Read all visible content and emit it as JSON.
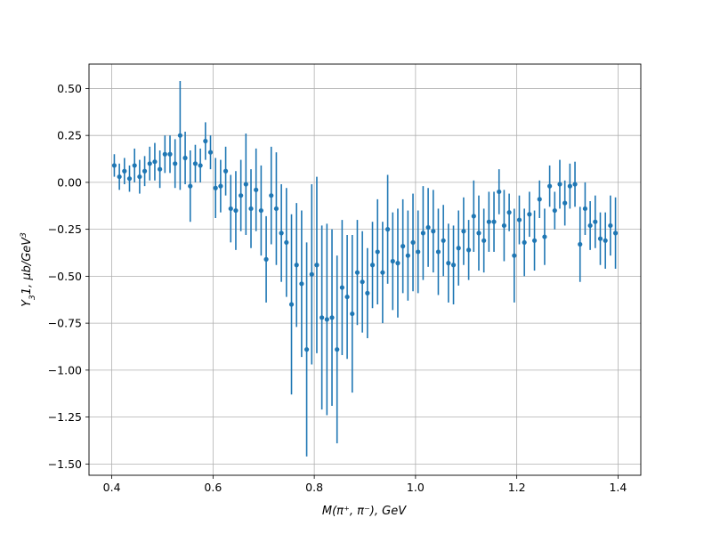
{
  "chart_data": {
    "type": "scatter",
    "title": "",
    "xlabel": "M(π⁺, π⁻), GeV",
    "ylabel_parts": {
      "y": "Y",
      "sub": "3",
      "rest": "1, μb/GeV",
      "sup": "3"
    },
    "xlim": [
      0.355,
      1.445
    ],
    "ylim": [
      -1.56,
      0.63
    ],
    "xticks": [
      0.4,
      0.6,
      0.8,
      1.0,
      1.2,
      1.4
    ],
    "xtick_labels": [
      "0.4",
      "0.6",
      "0.8",
      "1.0",
      "1.2",
      "1.4"
    ],
    "yticks": [
      0.5,
      0.25,
      0.0,
      -0.25,
      -0.5,
      -0.75,
      -1.0,
      -1.25,
      -1.5
    ],
    "ytick_labels": [
      "0.50",
      "0.25",
      "0.00",
      "−0.25",
      "−0.50",
      "−0.75",
      "−1.00",
      "−1.25",
      "−1.50"
    ],
    "grid": true,
    "color": "#1f77b4",
    "series": [
      {
        "x": [
          0.405,
          0.415,
          0.425,
          0.435,
          0.445,
          0.455,
          0.465,
          0.475,
          0.485,
          0.495,
          0.505,
          0.515,
          0.525,
          0.535,
          0.545,
          0.555,
          0.565,
          0.575,
          0.585,
          0.595,
          0.605,
          0.615,
          0.625,
          0.635,
          0.645,
          0.655,
          0.665,
          0.675,
          0.685,
          0.695,
          0.705,
          0.715,
          0.725,
          0.735,
          0.745,
          0.755,
          0.765,
          0.775,
          0.785,
          0.795,
          0.805,
          0.815,
          0.825,
          0.835,
          0.845,
          0.855,
          0.865,
          0.875,
          0.885,
          0.895,
          0.905,
          0.915,
          0.925,
          0.935,
          0.945,
          0.955,
          0.965,
          0.975,
          0.985,
          0.995,
          1.005,
          1.015,
          1.025,
          1.035,
          1.045,
          1.055,
          1.065,
          1.075,
          1.085,
          1.095,
          1.105,
          1.115,
          1.125,
          1.135,
          1.145,
          1.155,
          1.165,
          1.175,
          1.185,
          1.195,
          1.205,
          1.215,
          1.225,
          1.235,
          1.245,
          1.255,
          1.265,
          1.275,
          1.285,
          1.295,
          1.305,
          1.315,
          1.325,
          1.335,
          1.345,
          1.355,
          1.365,
          1.375,
          1.385,
          1.395
        ],
        "y": [
          0.09,
          0.03,
          0.06,
          0.02,
          0.09,
          0.03,
          0.06,
          0.1,
          0.11,
          0.07,
          0.15,
          0.15,
          0.1,
          0.25,
          0.13,
          -0.02,
          0.1,
          0.09,
          0.22,
          0.16,
          -0.03,
          -0.02,
          0.06,
          -0.14,
          -0.15,
          -0.07,
          -0.01,
          -0.14,
          -0.04,
          -0.15,
          -0.41,
          -0.07,
          -0.14,
          -0.27,
          -0.32,
          -0.65,
          -0.44,
          -0.54,
          -0.89,
          -0.49,
          -0.44,
          -0.72,
          -0.73,
          -0.72,
          -0.89,
          -0.56,
          -0.61,
          -0.7,
          -0.48,
          -0.53,
          -0.59,
          -0.44,
          -0.37,
          -0.48,
          -0.25,
          -0.42,
          -0.43,
          -0.34,
          -0.39,
          -0.32,
          -0.37,
          -0.27,
          -0.24,
          -0.26,
          -0.37,
          -0.31,
          -0.43,
          -0.44,
          -0.35,
          -0.26,
          -0.36,
          -0.18,
          -0.27,
          -0.31,
          -0.21,
          -0.21,
          -0.05,
          -0.23,
          -0.16,
          -0.39,
          -0.2,
          -0.32,
          -0.17,
          -0.31,
          -0.09,
          -0.29,
          -0.02,
          -0.15,
          -0.01,
          -0.11,
          -0.02,
          -0.01,
          -0.33,
          -0.14,
          -0.23,
          -0.21,
          -0.3,
          -0.31,
          -0.23,
          -0.27
        ],
        "yerr": [
          0.06,
          0.07,
          0.07,
          0.07,
          0.09,
          0.09,
          0.08,
          0.09,
          0.1,
          0.1,
          0.1,
          0.1,
          0.13,
          0.29,
          0.14,
          0.19,
          0.1,
          0.09,
          0.1,
          0.09,
          0.16,
          0.14,
          0.13,
          0.18,
          0.21,
          0.19,
          0.27,
          0.21,
          0.22,
          0.24,
          0.23,
          0.26,
          0.3,
          0.26,
          0.29,
          0.48,
          0.33,
          0.39,
          0.57,
          0.48,
          0.47,
          0.49,
          0.51,
          0.47,
          0.5,
          0.36,
          0.33,
          0.42,
          0.28,
          0.27,
          0.24,
          0.23,
          0.28,
          0.27,
          0.29,
          0.26,
          0.29,
          0.25,
          0.24,
          0.26,
          0.22,
          0.25,
          0.21,
          0.22,
          0.23,
          0.19,
          0.21,
          0.21,
          0.2,
          0.18,
          0.16,
          0.19,
          0.2,
          0.17,
          0.16,
          0.16,
          0.12,
          0.19,
          0.1,
          0.25,
          0.13,
          0.18,
          0.12,
          0.16,
          0.1,
          0.15,
          0.11,
          0.1,
          0.13,
          0.12,
          0.12,
          0.12,
          0.2,
          0.14,
          0.13,
          0.14,
          0.14,
          0.15,
          0.16,
          0.19
        ]
      }
    ]
  }
}
